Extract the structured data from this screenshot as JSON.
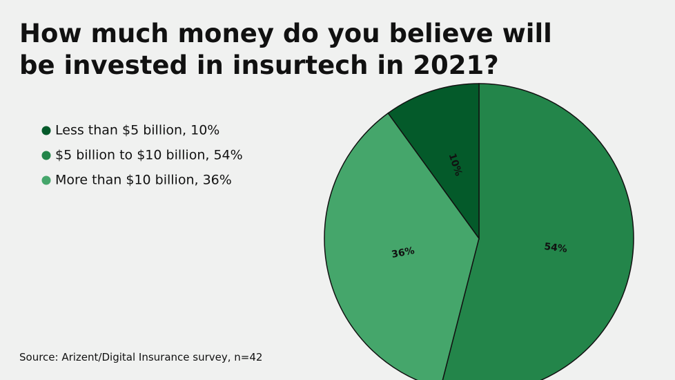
{
  "chart_data": {
    "type": "pie",
    "title": "How much money do you believe will be invested in insurtech in 2021?",
    "categories": [
      "$5 billion to $10 billion, 54%",
      "More than $10 billion, 36%",
      "Less than $5 billion, 10%"
    ],
    "values": [
      54,
      36,
      10
    ],
    "value_labels": [
      "54%",
      "36%",
      "10%"
    ],
    "colors": [
      "#23854a",
      "#45a66b",
      "#045a2a"
    ],
    "legend_order": [
      2,
      0,
      1
    ],
    "source": "Source: Arizent/Digital Insurance survey, n=42"
  }
}
